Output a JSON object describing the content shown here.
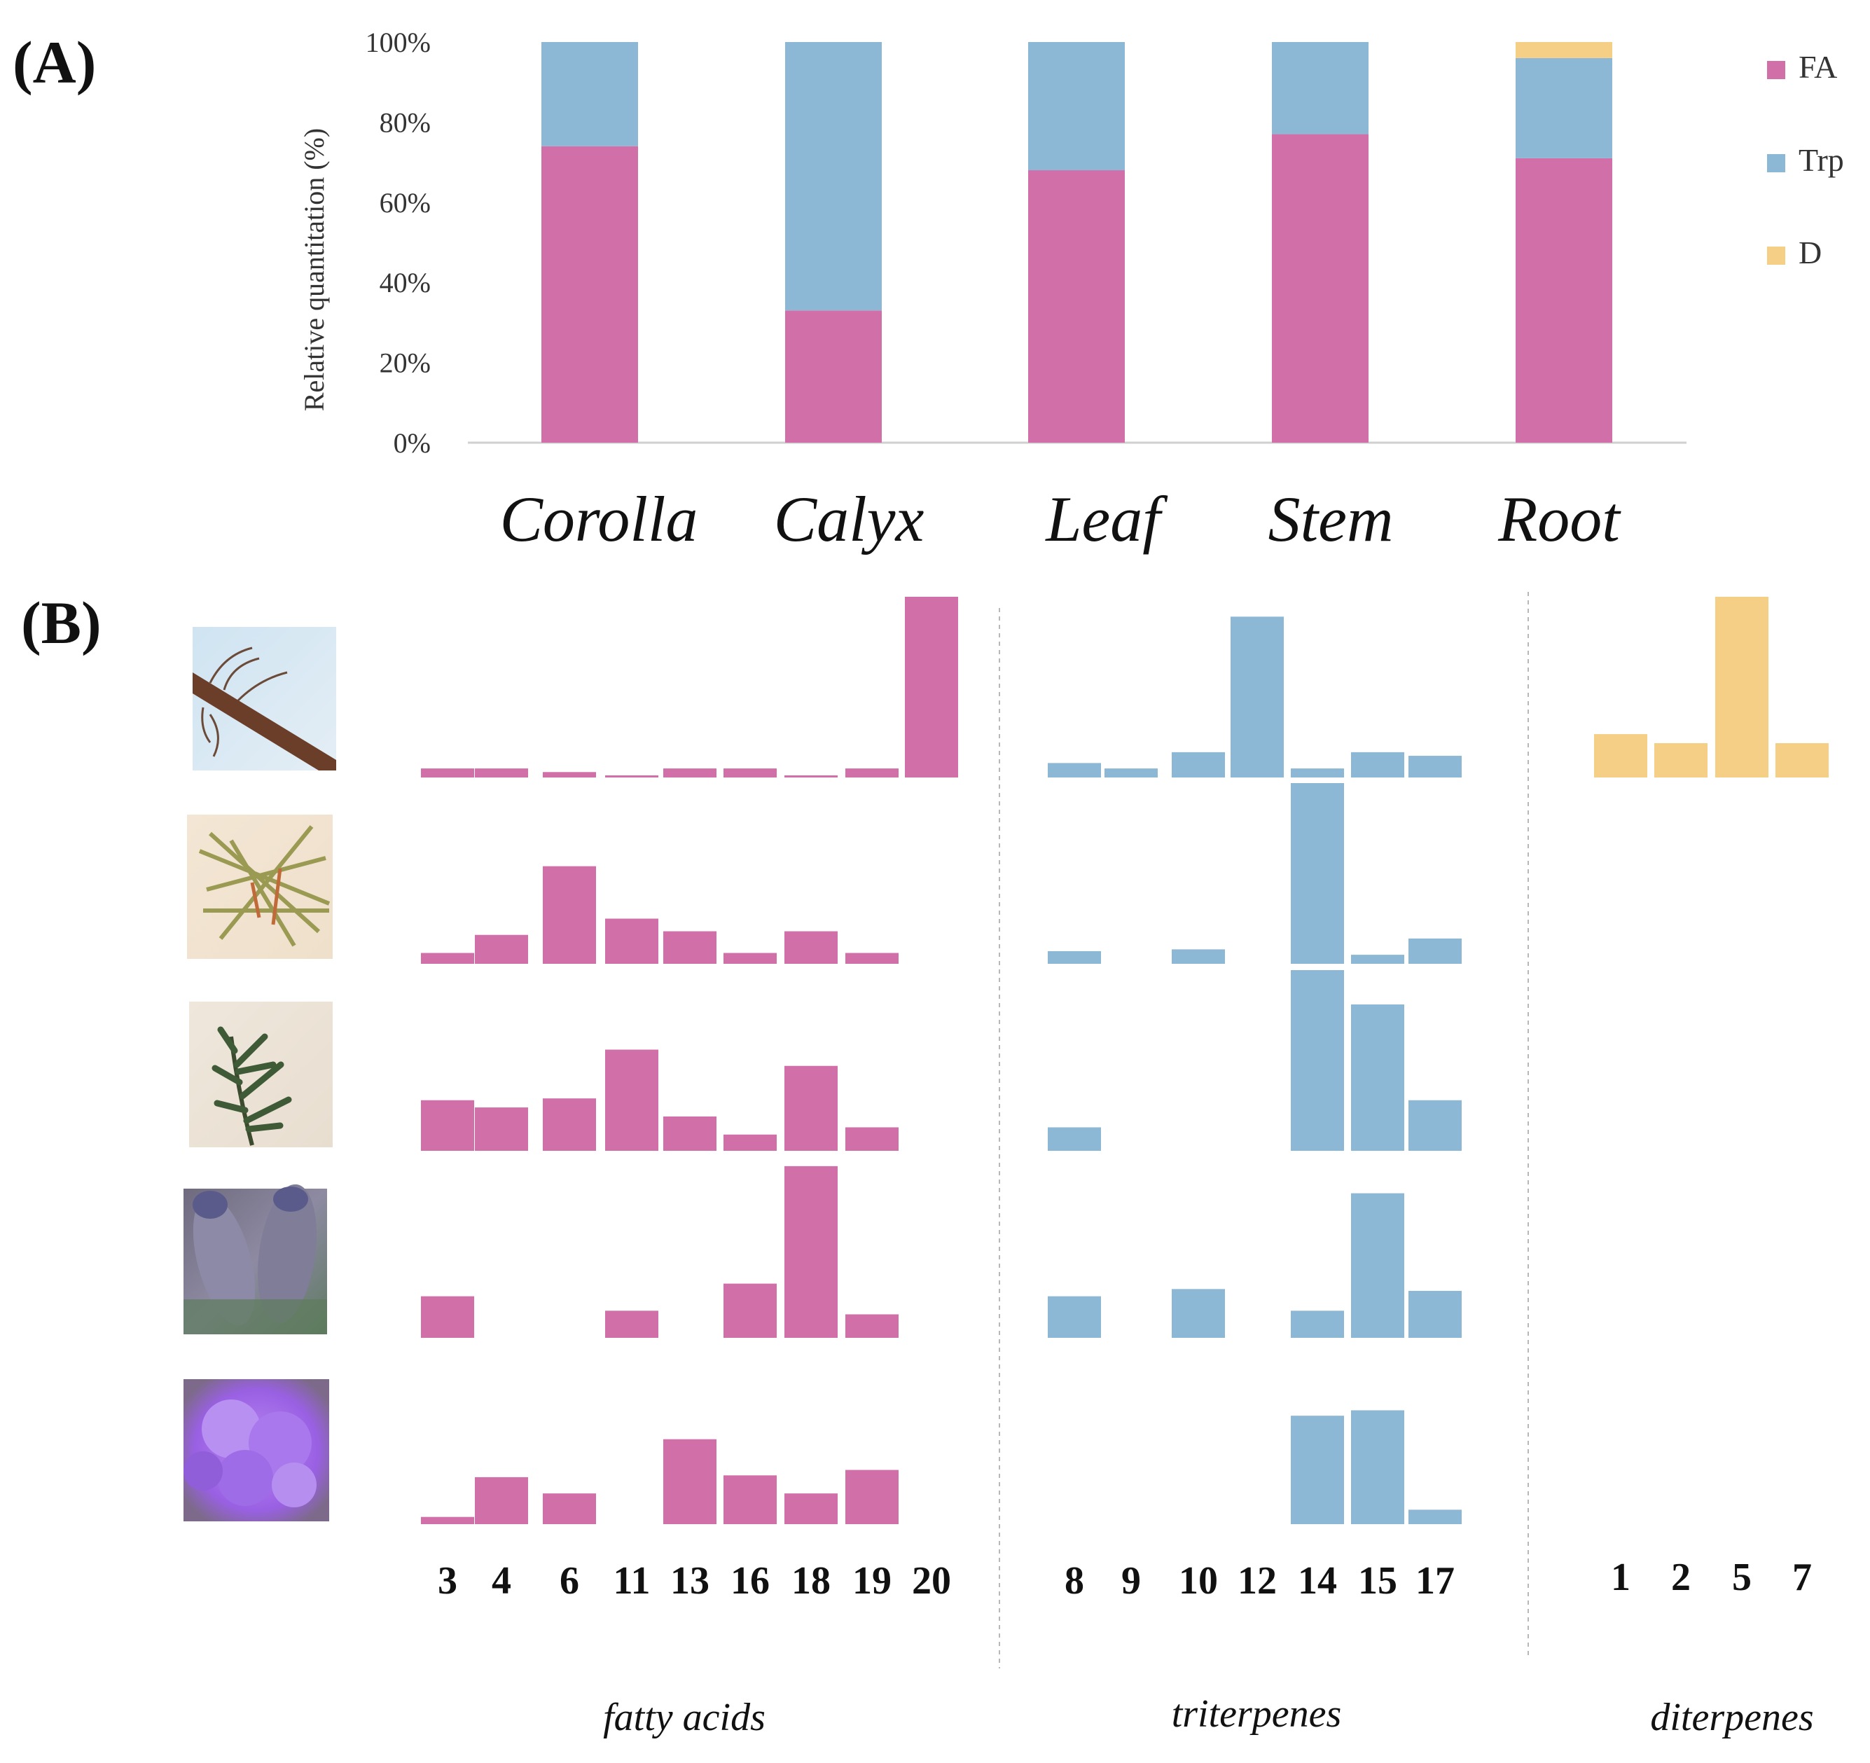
{
  "chart_data": [
    {
      "type": "bar",
      "stacked": true,
      "panel_label": "(A)",
      "categories": [
        "Corolla",
        "Calyx",
        "Leaf",
        "Stem",
        "Root"
      ],
      "series": [
        {
          "name": "FA",
          "color": "#d16fa9",
          "values": [
            74,
            33,
            68,
            77,
            71
          ]
        },
        {
          "name": "Trp",
          "color": "#8db8d5",
          "values": [
            26,
            67,
            32,
            23,
            25
          ]
        },
        {
          "name": "D",
          "color": "#f5cf85",
          "values": [
            0,
            0,
            0,
            0,
            4
          ]
        }
      ],
      "ylabel": "Relative quantitation  (%)",
      "yticks": [
        "0%",
        "20%",
        "40%",
        "60%",
        "80%",
        "100%"
      ],
      "ylim": [
        0,
        100
      ],
      "legend": {
        "position": "right",
        "entries": [
          "FA",
          "Trp",
          "D"
        ]
      }
    },
    {
      "type": "bar",
      "panel_label": "(B)",
      "rows": [
        "Root",
        "Stem",
        "Leaf",
        "Calyx",
        "Corolla"
      ],
      "groups": [
        {
          "name": "fatty acids",
          "color": "#d16fa9",
          "compounds": [
            "3",
            "4",
            "6",
            "11",
            "13",
            "16",
            "18",
            "19",
            "20"
          ],
          "values": [
            [
              5,
              5,
              3,
              1,
              5,
              5,
              1,
              5,
              100
            ],
            [
              6,
              16,
              54,
              25,
              18,
              6,
              18,
              6,
              null
            ],
            [
              28,
              24,
              29,
              56,
              19,
              9,
              47,
              13,
              null
            ],
            [
              23,
              null,
              null,
              15,
              null,
              30,
              95,
              13,
              null
            ],
            [
              4,
              26,
              17,
              null,
              47,
              27,
              17,
              30,
              null
            ]
          ]
        },
        {
          "name": "triterpenes",
          "color": "#8db8d5",
          "compounds": [
            "8",
            "9",
            "10",
            "12",
            "14",
            "15",
            "17"
          ],
          "values": [
            [
              8,
              5,
              14,
              89,
              5,
              14,
              12
            ],
            [
              7,
              null,
              8,
              null,
              100,
              5,
              14
            ],
            [
              13,
              null,
              null,
              null,
              100,
              81,
              28
            ],
            [
              23,
              null,
              27,
              null,
              15,
              80,
              26
            ],
            [
              null,
              null,
              null,
              null,
              60,
              63,
              8
            ]
          ]
        },
        {
          "name": "diterpenes",
          "color": "#f5cf85",
          "compounds": [
            "1",
            "2",
            "5",
            "7"
          ],
          "values": [
            [
              24,
              19,
              100,
              19
            ],
            [
              null,
              null,
              null,
              null
            ],
            [
              null,
              null,
              null,
              null
            ],
            [
              null,
              null,
              null,
              null
            ],
            [
              null,
              null,
              null,
              null
            ]
          ]
        }
      ]
    }
  ]
}
